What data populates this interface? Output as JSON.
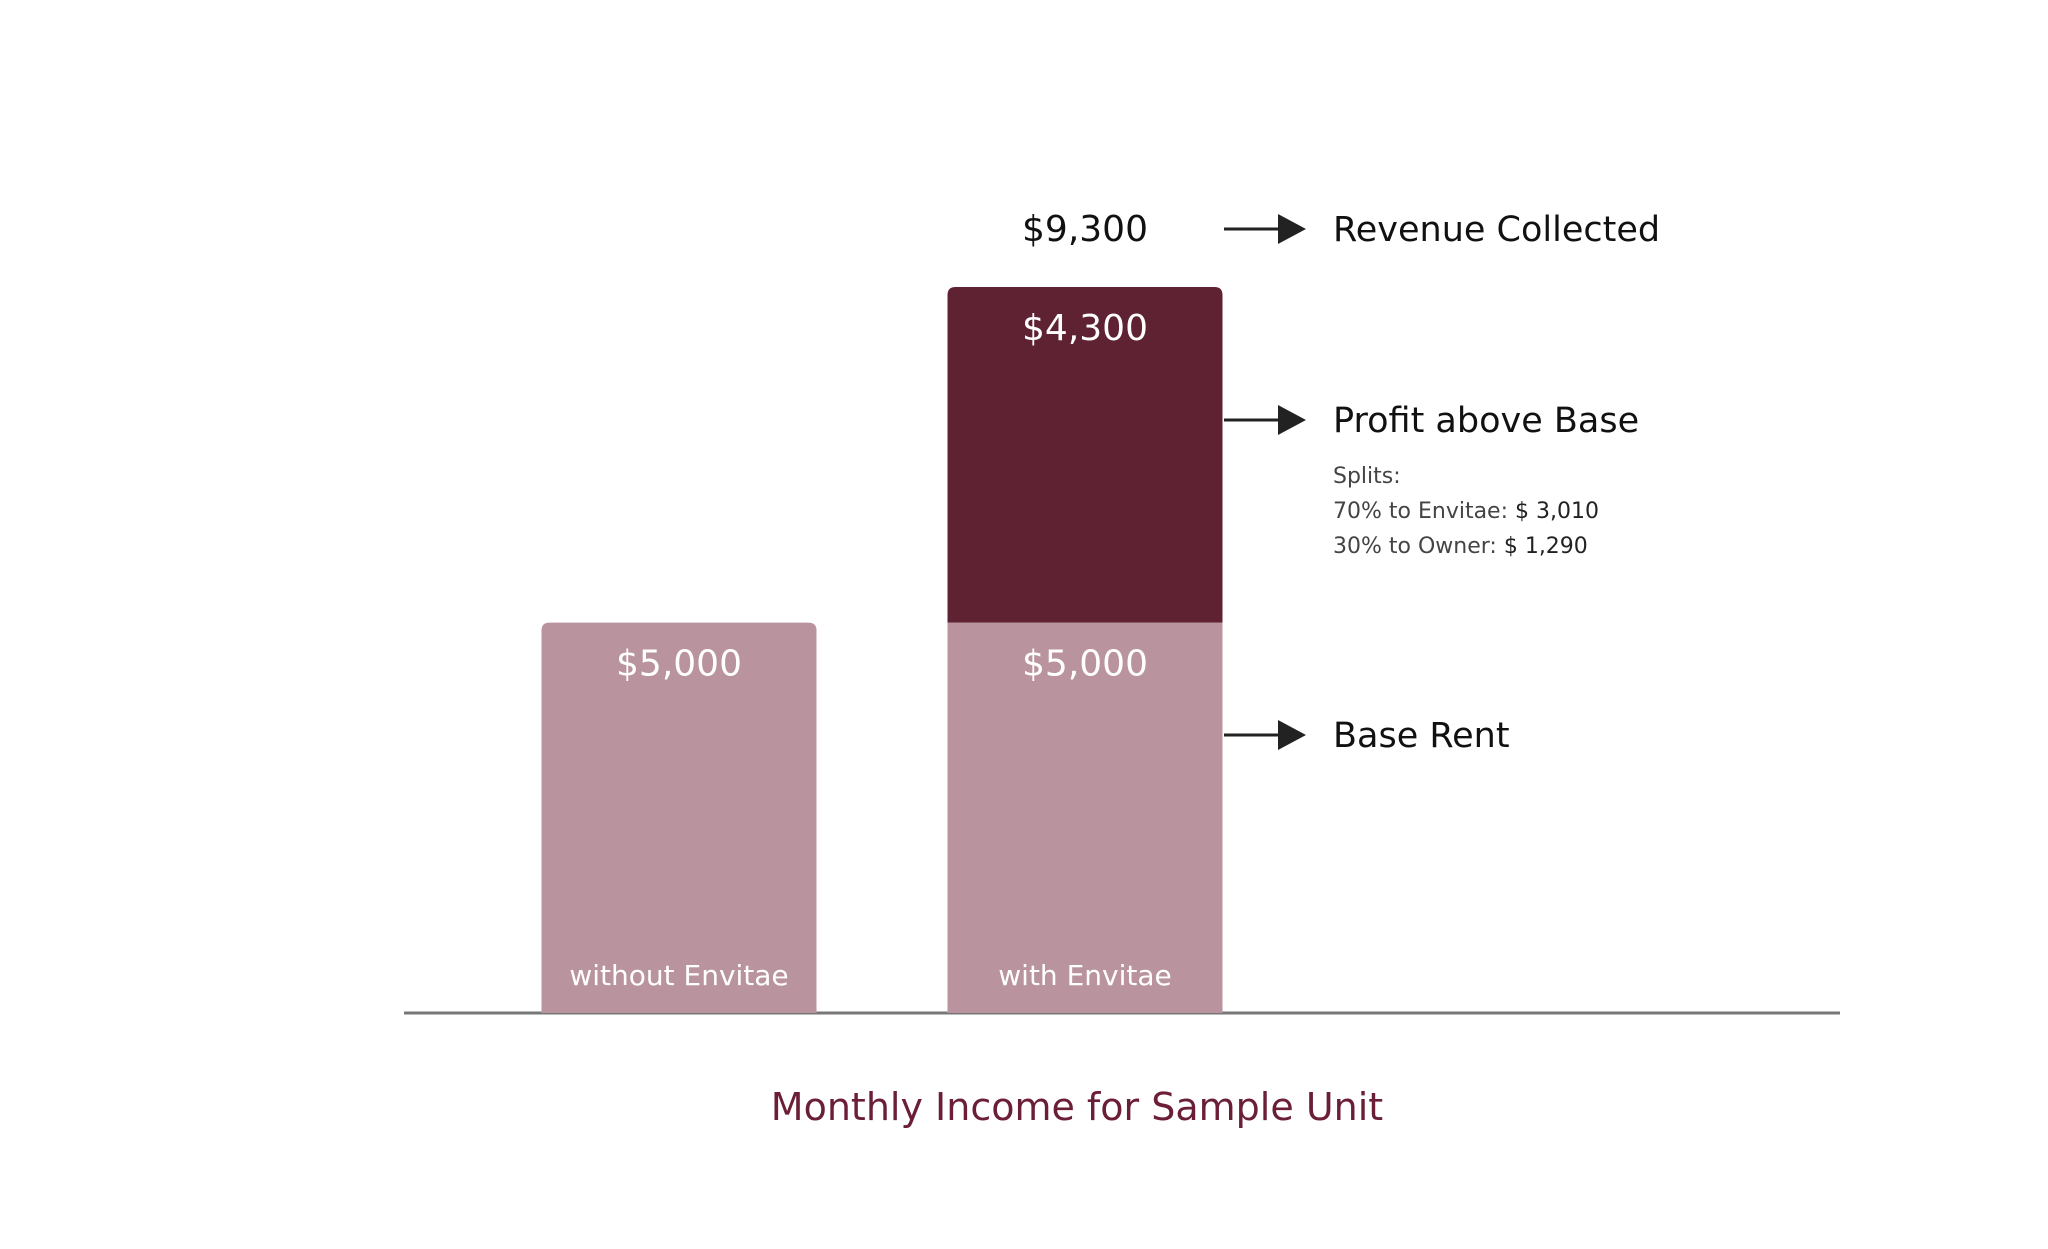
{
  "chart_data": {
    "type": "bar",
    "stacked": true,
    "title": "Monthly Income for Sample Unit",
    "categories": [
      "without Envitae",
      "with Envitae"
    ],
    "series": [
      {
        "name": "Base Rent",
        "values": [
          5000,
          5000
        ],
        "labels": [
          "$5,000",
          "$5,000"
        ],
        "color": "#b9949e"
      },
      {
        "name": "Profit above Base",
        "values": [
          0,
          4300
        ],
        "labels": [
          "",
          "$4,300"
        ],
        "color": "#5e2233"
      }
    ],
    "total_label": "$9,300",
    "ylim": [
      0,
      9300
    ],
    "grid": false,
    "annotations": {
      "revenue": "Revenue Collected",
      "profit": "Profit above Base",
      "base": "Base Rent"
    },
    "splits": {
      "heading": "Splits:",
      "envitae_prefix": "70% to Envitae: ",
      "envitae_value": "$ 3,010",
      "owner_prefix": "30% to Owner: ",
      "owner_value": "$ 1,290"
    }
  },
  "colors": {
    "base": "#b9949e",
    "profit": "#5e2233",
    "axis": "#777777",
    "title": "#6b1f36",
    "arrow": "#222222"
  }
}
